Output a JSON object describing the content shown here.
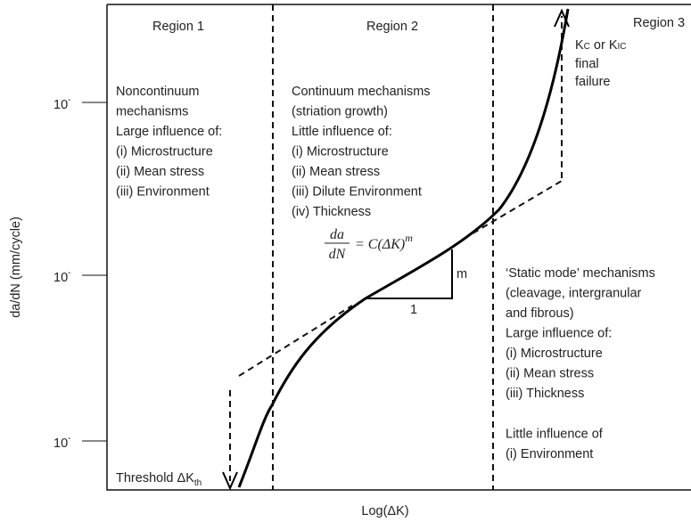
{
  "regions": [
    {
      "title": "Region 1",
      "lines": [
        "Noncontinuum",
        "mechanisms",
        "Large influence of:",
        "(i) Microstructure",
        "(ii) Mean stress",
        "(iii) Environment"
      ]
    },
    {
      "title": "Region 2",
      "lines": [
        "Continuum mechanisms",
        "(striation growth)",
        "Little influence of:",
        "(i) Microstructure",
        "(ii) Mean stress",
        "(iii) Dilute Environment",
        "(iv) Thickness"
      ]
    },
    {
      "title": "Region 3",
      "lines": [
        "‘Static mode’ mechanisms",
        "(cleavage, intergranular",
        "and fibrous)",
        "Large influence of:",
        "(i) Microstructure",
        "(ii) Mean stress",
        "(iii) Thickness",
        "Little influence of",
        "(i) Environment"
      ]
    }
  ],
  "y_ticks": [
    {
      "base": "10",
      "exp": "-"
    },
    {
      "base": "10",
      "exp": "-"
    },
    {
      "base": "10",
      "exp": "-"
    }
  ],
  "y_label": "da/dN (mm/cycle)",
  "x_label": "Log(ΔK)",
  "equation": {
    "num": "da",
    "den": "dN",
    "rhs": "= C(ΔK)",
    "exp": "m"
  },
  "slope": {
    "rise": "m",
    "run": "1"
  },
  "failure": {
    "k": "K",
    "sub1": "C",
    "or": " or K",
    "sub2": "IC",
    "line2": "final",
    "line3": "failure"
  },
  "threshold": {
    "text": "Threshold ΔK",
    "sub": "th"
  }
}
